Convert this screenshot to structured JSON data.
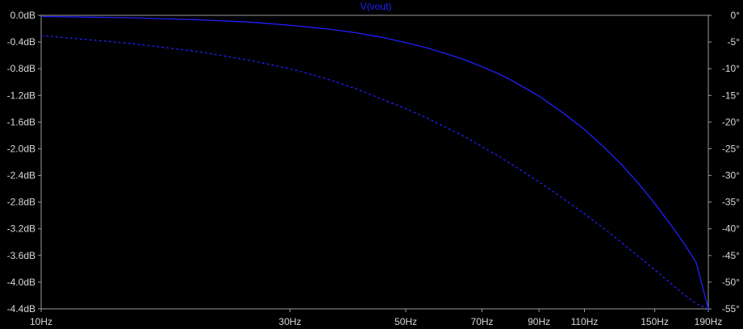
{
  "chart_data": {
    "type": "line",
    "title": "V(vout)",
    "x_scale": "log",
    "xlim": [
      10,
      190
    ],
    "x_ticks": [
      10,
      30,
      50,
      70,
      90,
      110,
      150,
      190
    ],
    "x_tick_labels": [
      "10Hz",
      "30Hz",
      "50Hz",
      "70Hz",
      "90Hz",
      "110Hz",
      "150Hz",
      "190Hz"
    ],
    "y_left": {
      "ylim": [
        -4.4,
        0
      ],
      "ticks": [
        0,
        -0.4,
        -0.8,
        -1.2,
        -1.6,
        -2.0,
        -2.4,
        -2.8,
        -3.2,
        -3.6,
        -4.0,
        -4.4
      ],
      "tick_labels": [
        "0.0dB",
        "-0.4dB",
        "-0.8dB",
        "-1.2dB",
        "-1.6dB",
        "-2.0dB",
        "-2.4dB",
        "-2.8dB",
        "-3.2dB",
        "-3.6dB",
        "-4.0dB",
        "-4.4dB"
      ]
    },
    "y_right": {
      "ylim": [
        -55,
        0
      ],
      "ticks": [
        0,
        -5,
        -10,
        -15,
        -20,
        -25,
        -30,
        -35,
        -40,
        -45,
        -50,
        -55
      ],
      "tick_labels": [
        "0°",
        "-5°",
        "-10°",
        "-15°",
        "-20°",
        "-25°",
        "-30°",
        "-35°",
        "-40°",
        "-45°",
        "-50°",
        "-55°"
      ]
    },
    "grid": false,
    "series": [
      {
        "axis": "left",
        "style": "solid",
        "color": "#2020ff",
        "x": [
          10,
          15,
          20,
          25,
          30,
          35,
          40,
          45,
          50,
          55,
          60,
          65,
          70,
          75,
          80,
          90,
          100,
          110,
          120,
          130,
          140,
          150,
          160,
          170,
          180,
          190
        ],
        "y": [
          -0.017,
          -0.037,
          -0.066,
          -0.1,
          -0.15,
          -0.2,
          -0.26,
          -0.33,
          -0.41,
          -0.49,
          -0.58,
          -0.67,
          -0.77,
          -0.87,
          -0.98,
          -1.21,
          -1.46,
          -1.71,
          -1.98,
          -2.25,
          -2.53,
          -2.82,
          -3.11,
          -3.4,
          -3.7,
          -4.4
        ]
      },
      {
        "axis": "right",
        "style": "dashed",
        "color": "#2020ff",
        "x": [
          10,
          15,
          20,
          25,
          30,
          35,
          40,
          45,
          50,
          55,
          60,
          65,
          70,
          75,
          80,
          90,
          100,
          110,
          120,
          130,
          140,
          150,
          160,
          170,
          180,
          190
        ],
        "y": [
          -3.8,
          -5.3,
          -6.8,
          -8.4,
          -10.0,
          -11.8,
          -13.7,
          -15.7,
          -17.5,
          -19.3,
          -21.1,
          -22.8,
          -24.6,
          -26.3,
          -28.0,
          -31.2,
          -34.3,
          -37.2,
          -40.0,
          -42.7,
          -45.3,
          -47.7,
          -50.0,
          -52.2,
          -54.0,
          -55.0
        ]
      }
    ]
  }
}
